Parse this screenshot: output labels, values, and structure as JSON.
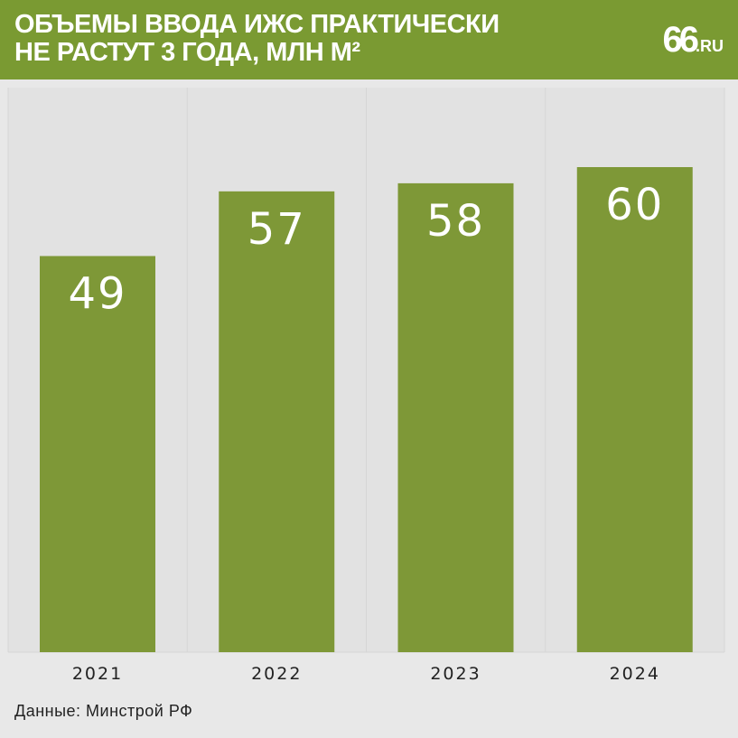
{
  "header": {
    "title": "ОБЪЕМЫ ВВОДА ИЖС ПРАКТИЧЕСКИ\nНЕ РАСТУТ 3 ГОДА, МЛН М²",
    "logo_number": "66",
    "logo_domain": ".RU"
  },
  "colors": {
    "accent": "#7a9a32",
    "bar": "#7e9837",
    "background": "#e8e8e8",
    "panel": "#e2e2e2",
    "text_light": "#ffffff",
    "text_dark": "#222222"
  },
  "chart_data": {
    "type": "bar",
    "categories": [
      "2021",
      "2022",
      "2023",
      "2024"
    ],
    "values": [
      49,
      57,
      58,
      60
    ],
    "title": "ОБЪЕМЫ ВВОДА ИЖС ПРАКТИЧЕСКИ НЕ РАСТУТ 3 ГОДА, МЛН М²",
    "xlabel": "",
    "ylabel": "",
    "ylim": [
      0,
      60
    ],
    "grid": false,
    "data_labels": true
  },
  "footer": {
    "source": "Данные: Минстрой РФ"
  }
}
